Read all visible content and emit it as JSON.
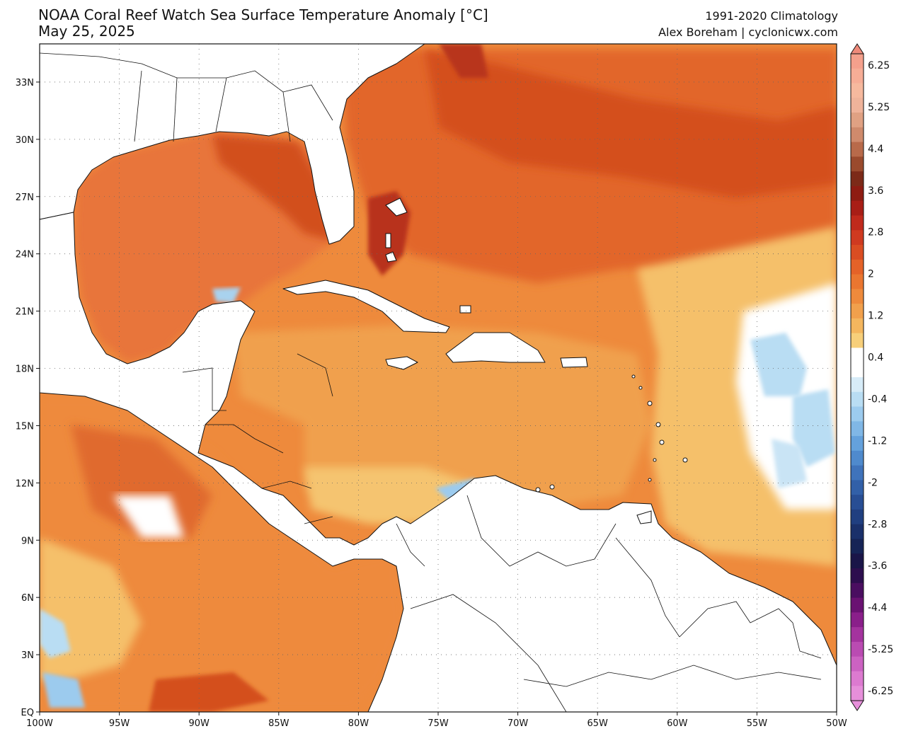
{
  "header": {
    "title": "NOAA Coral Reef Watch Sea Surface Temperature Anomaly [°C]",
    "date": "May 25, 2025",
    "climatology": "1991-2020 Climatology",
    "credit": "Alex Boreham | cyclonicwx.com"
  },
  "map": {
    "lon_range": [
      -100,
      -50
    ],
    "lat_range": [
      0,
      35
    ],
    "lat_ticks": [
      {
        "value": 33,
        "label": "33N"
      },
      {
        "value": 30,
        "label": "30N"
      },
      {
        "value": 27,
        "label": "27N"
      },
      {
        "value": 24,
        "label": "24N"
      },
      {
        "value": 21,
        "label": "21N"
      },
      {
        "value": 18,
        "label": "18N"
      },
      {
        "value": 15,
        "label": "15N"
      },
      {
        "value": 12,
        "label": "12N"
      },
      {
        "value": 9,
        "label": "9N"
      },
      {
        "value": 6,
        "label": "6N"
      },
      {
        "value": 3,
        "label": "3N"
      },
      {
        "value": 0,
        "label": "EQ"
      }
    ],
    "lon_ticks": [
      {
        "value": -100,
        "label": "100W"
      },
      {
        "value": -95,
        "label": "95W"
      },
      {
        "value": -90,
        "label": "90W"
      },
      {
        "value": -85,
        "label": "85W"
      },
      {
        "value": -80,
        "label": "80W"
      },
      {
        "value": -75,
        "label": "75W"
      },
      {
        "value": -70,
        "label": "70W"
      },
      {
        "value": -65,
        "label": "65W"
      },
      {
        "value": -60,
        "label": "60W"
      },
      {
        "value": -55,
        "label": "55W"
      },
      {
        "value": -50,
        "label": "50W"
      }
    ],
    "gridlines": "dotted",
    "colors": {
      "ocean_warm": "#ee8a3c",
      "ocean_hot": "#d9541e",
      "ocean_mild": "#f4b860",
      "ocean_neutral": "#ffffff",
      "ocean_cool": "#a9d2ee",
      "land": "#ffffff",
      "borders": "#111111"
    }
  },
  "colorbar": {
    "labels": [
      "6.25",
      "5.25",
      "4.4",
      "3.6",
      "2.8",
      "2",
      "1.2",
      "0.4",
      "-0.4",
      "-1.2",
      "-2",
      "-2.8",
      "-3.6",
      "-4.4",
      "-5.25",
      "-6.25"
    ],
    "colors": [
      "#f4a08c",
      "#f6ad96",
      "#f6b99e",
      "#efb39a",
      "#e0a183",
      "#cf8a6c",
      "#b86a4a",
      "#9a4a2d",
      "#7c2a18",
      "#8e1c12",
      "#a81e16",
      "#c02a1c",
      "#cf3a20",
      "#da4d22",
      "#e46228",
      "#ea7630",
      "#ee8a3c",
      "#f1a04c",
      "#f4b65e",
      "#f7cf7a",
      "#ffffff",
      "#ffffff",
      "#d7ecf8",
      "#b9ddf3",
      "#9ccbee",
      "#80b7e6",
      "#64a1dc",
      "#4f8acd",
      "#3f73bb",
      "#3260a8",
      "#284e94",
      "#203f80",
      "#1a306a",
      "#162456",
      "#1a1548",
      "#2d0e4e",
      "#4a0e60",
      "#6a1272",
      "#8a1f8a",
      "#a4339e",
      "#ba4bb2",
      "#cc62c2",
      "#dc7ad0",
      "#e68fda"
    ]
  }
}
